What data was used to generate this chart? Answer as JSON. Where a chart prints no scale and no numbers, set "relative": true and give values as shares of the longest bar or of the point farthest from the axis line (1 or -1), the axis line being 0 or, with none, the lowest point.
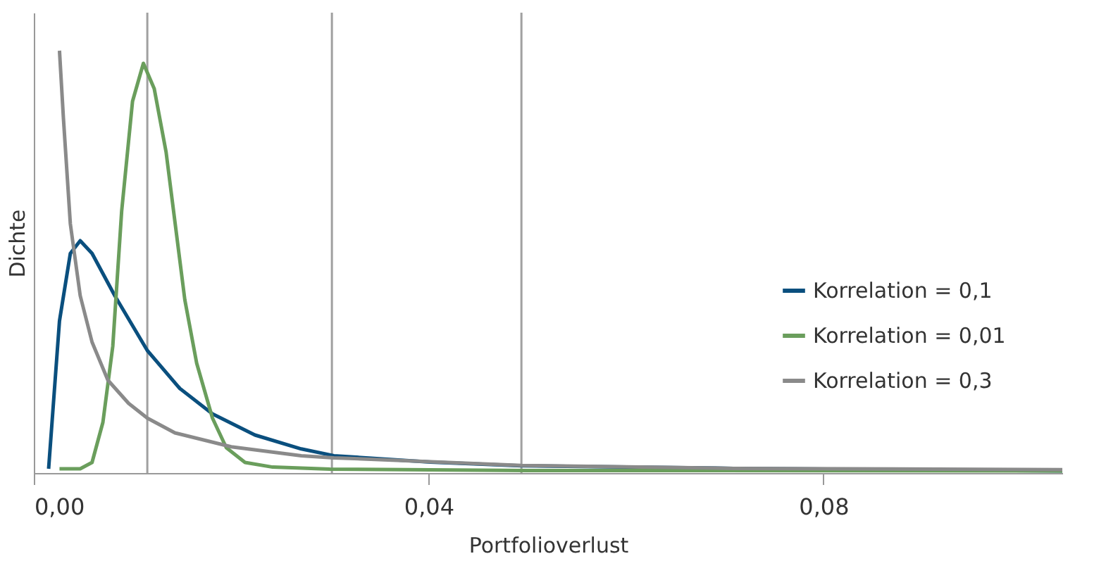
{
  "chart_data": {
    "type": "line",
    "xlabel": "Portfolioverlust",
    "ylabel": "Dichte",
    "relative": true,
    "xlim": [
      0,
      0.1042
    ],
    "xticks": [
      {
        "value": 0,
        "label": "0,00"
      },
      {
        "value": 0.04,
        "label": "0,04"
      },
      {
        "value": 0.08,
        "label": "0,08"
      }
    ],
    "legend": "right",
    "grid": false,
    "marker": "none",
    "line_style": "solid",
    "ref_lines": [
      {
        "axis": "x",
        "value": 0.0115,
        "label": null,
        "color": "#a0a0a0"
      },
      {
        "axis": "x",
        "value": 0.0302,
        "label": null,
        "color": "#a0a0a0"
      },
      {
        "axis": "x",
        "value": 0.0494,
        "label": null,
        "color": "#a0a0a0"
      }
    ],
    "series": [
      {
        "name": "Korrelation = 0,1",
        "color": "#0a4f7e",
        "x": [
          0.0015,
          0.0026,
          0.0037,
          0.0047,
          0.0059,
          0.0082,
          0.0115,
          0.0148,
          0.0181,
          0.0224,
          0.0271,
          0.0304,
          0.0402,
          0.0494,
          0.0709,
          0.1042
        ],
        "values": [
          0.01,
          0.36,
          0.52,
          0.55,
          0.52,
          0.42,
          0.29,
          0.2,
          0.14,
          0.09,
          0.057,
          0.041,
          0.026,
          0.017,
          0.011,
          0.005
        ]
      },
      {
        "name": "Korrelation = 0,01",
        "color": "#6a9e5c",
        "x": [
          0.0026,
          0.0047,
          0.0059,
          0.007,
          0.008,
          0.0089,
          0.01,
          0.0111,
          0.0122,
          0.0134,
          0.0153,
          0.0165,
          0.0181,
          0.0195,
          0.0214,
          0.0242,
          0.03,
          0.05,
          0.1042
        ],
        "values": [
          0.01,
          0.01,
          0.025,
          0.12,
          0.3,
          0.62,
          0.88,
          0.97,
          0.91,
          0.76,
          0.41,
          0.26,
          0.13,
          0.06,
          0.025,
          0.014,
          0.009,
          0.006,
          0.005
        ]
      },
      {
        "name": "Korrelation = 0,3",
        "color": "#8a8a8a",
        "x": [
          0.0026,
          0.003,
          0.0037,
          0.0047,
          0.0059,
          0.0075,
          0.0096,
          0.0115,
          0.0143,
          0.02,
          0.0271,
          0.0304,
          0.0494,
          0.0709,
          0.1042
        ],
        "values": [
          1.0,
          0.84,
          0.59,
          0.42,
          0.31,
          0.22,
          0.165,
          0.13,
          0.095,
          0.062,
          0.041,
          0.036,
          0.018,
          0.011,
          0.008
        ]
      }
    ]
  }
}
